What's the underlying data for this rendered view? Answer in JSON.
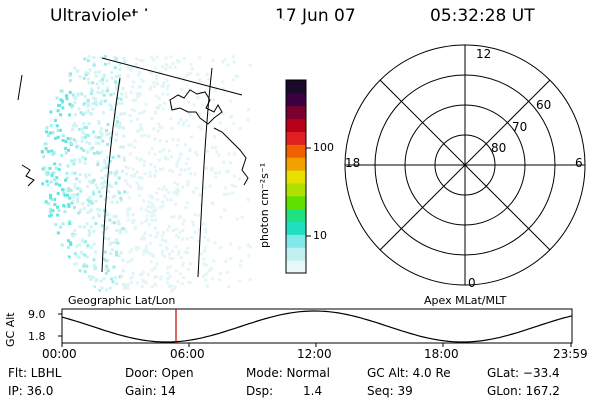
{
  "header": {
    "instrument": "Ultraviolet Imager",
    "date": "17 Jun 07",
    "time": "05:32:28 UT"
  },
  "colorbar": {
    "label": "photon cm⁻²s⁻¹",
    "ticks": [
      "100",
      "10"
    ],
    "colors": [
      "#1a0a2a",
      "#3a0040",
      "#7a0030",
      "#b80018",
      "#e02020",
      "#f06000",
      "#f0a000",
      "#e8e000",
      "#b0e000",
      "#60e000",
      "#20e080",
      "#20e0c0",
      "#80e8e8",
      "#c0f0f0",
      "#e8f8f8"
    ]
  },
  "polar_plot": {
    "mlt_labels": {
      "top": "12",
      "left": "18",
      "right": "6",
      "bottom": "0"
    },
    "lat_labels": [
      "60",
      "70",
      "80"
    ]
  },
  "altitude_panel": {
    "left_title": "Geographic Lat/Lon",
    "right_title": "Apex MLat/MLT",
    "axis_label": "GC Alt",
    "y_ticks": [
      "9.0",
      "1.8"
    ],
    "x_ticks": [
      "00:00",
      "06:00",
      "12:00",
      "18:00",
      "23:59"
    ],
    "marker_color": "#c00000"
  },
  "info": {
    "flt": "Flt: LBHL",
    "ip": "IP: 36.0",
    "door": "Door: Open",
    "gain": "Gain: 14",
    "mode": "Mode: Normal",
    "dsp_label": "Dsp:",
    "dsp_value": "1.4",
    "gc_alt": "GC Alt: 4.0 Re",
    "seq": "Seq: 39",
    "glat": "GLat: −33.4",
    "glon": "GLon: 167.2"
  }
}
